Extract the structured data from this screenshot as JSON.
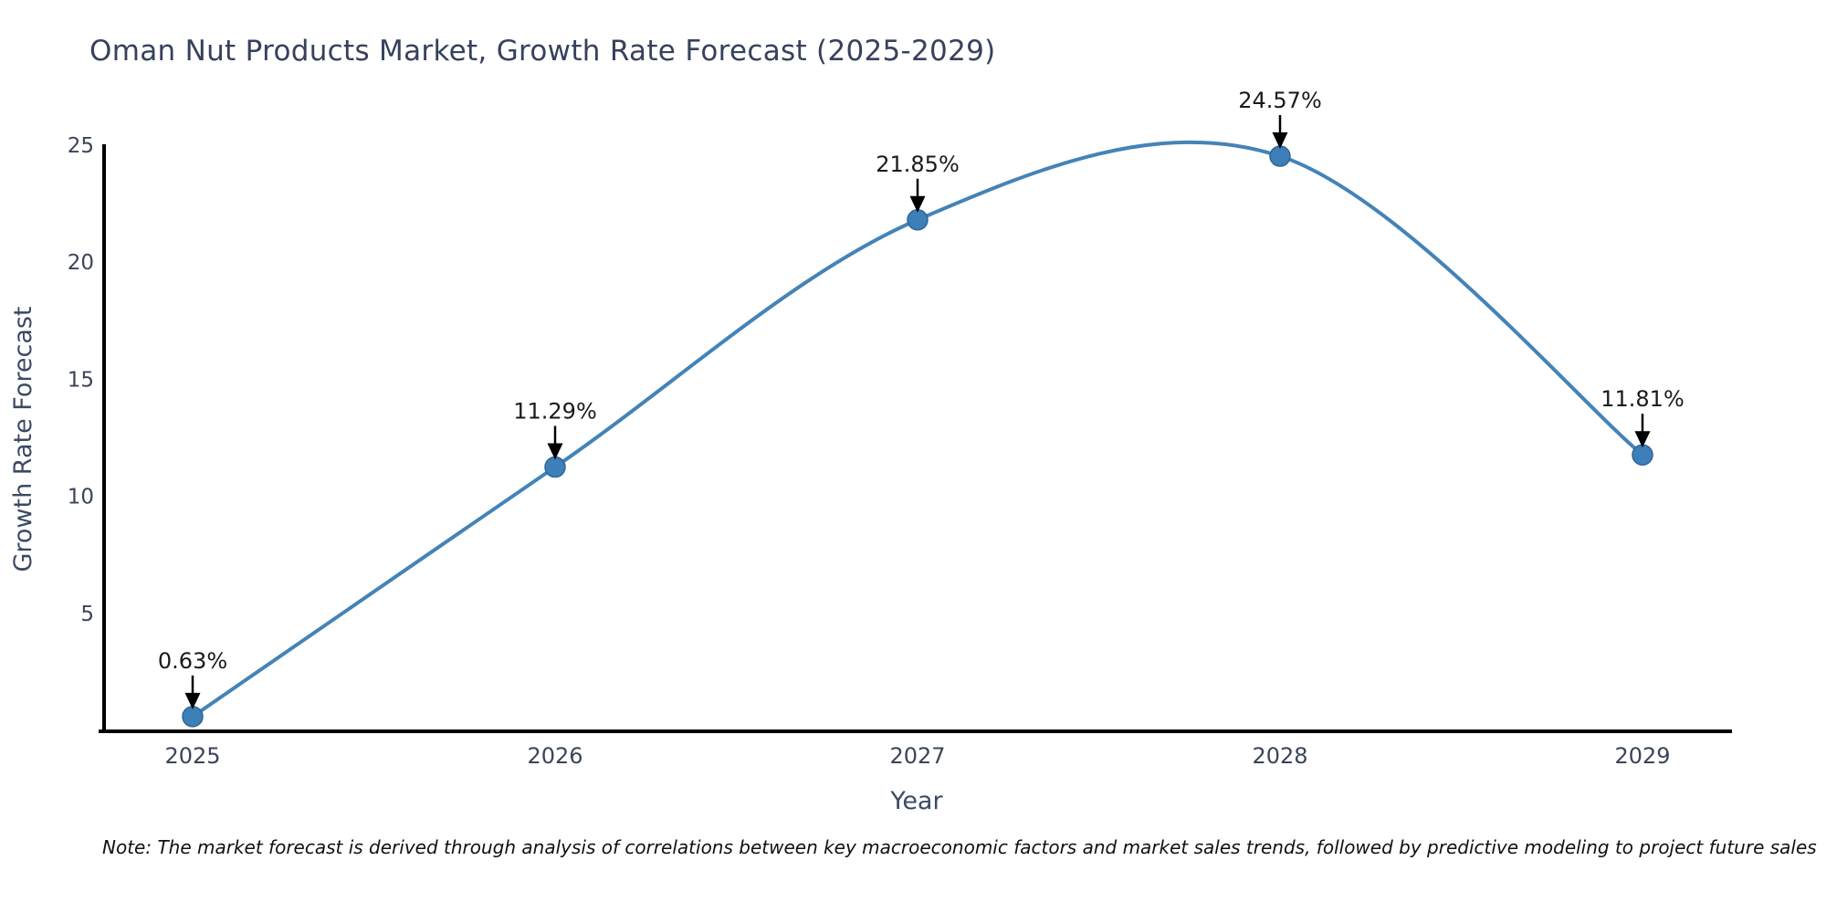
{
  "title": "Oman Nut Products Market, Growth Rate Forecast (2025-2029)",
  "note": "Note: The market forecast is derived through analysis of correlations between key macroeconomic factors and market sales trends, followed by predictive modeling to project future sales",
  "chart_data": {
    "type": "line",
    "title": "Oman Nut Products Market, Growth Rate Forecast (2025-2029)",
    "x": [
      "2025",
      "2026",
      "2027",
      "2028",
      "2029"
    ],
    "values": [
      0.63,
      11.29,
      21.85,
      24.57,
      11.81
    ],
    "point_labels": [
      "0.63%",
      "11.29%",
      "21.85%",
      "24.57%",
      "11.81%"
    ],
    "xlabel": "Year",
    "ylabel": "Growth Rate Forecast",
    "yticks": [
      5,
      10,
      15,
      20,
      25
    ],
    "ylim": [
      0,
      25
    ],
    "grid": false,
    "legend": "none",
    "smooth": true,
    "line_color": "#4483b7",
    "marker_color": "#3d7fb8",
    "marker_edge_color": "#2f6695",
    "axis_color": "#000000",
    "tick_color": "#3b4559",
    "axis_label_color": "#3b4a63",
    "annotation_color": "#1a1a1a",
    "background_color": "#ffffff"
  }
}
